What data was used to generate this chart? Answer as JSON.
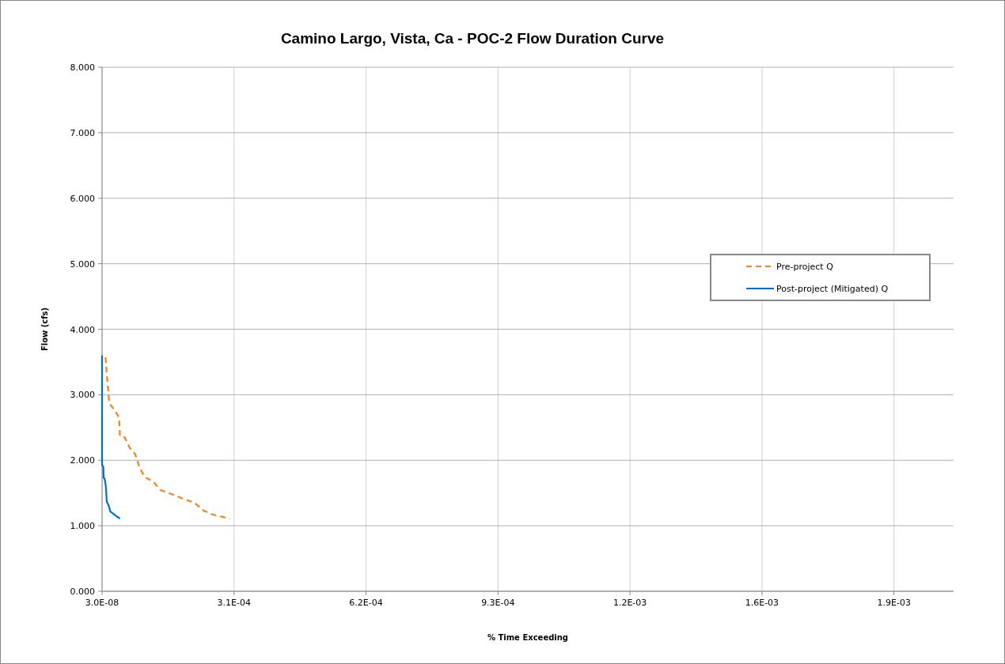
{
  "chart_data": {
    "type": "line",
    "title": "Camino Largo, Vista, Ca  - POC-2 Flow Duration Curve",
    "xlabel": "% Time Exceeding",
    "ylabel": "Flow (cfs)",
    "xlim": [
      3e-08,
      0.002
    ],
    "xticks": [
      {
        "value": 3e-08,
        "label": "3.0E-08"
      },
      {
        "value": 0.00031003,
        "label": "3.1E-04"
      },
      {
        "value": 0.00062003,
        "label": "6.2E-04"
      },
      {
        "value": 0.00093003,
        "label": "9.3E-04"
      },
      {
        "value": 0.00124003,
        "label": "1.2E-03"
      },
      {
        "value": 0.00155003,
        "label": "1.6E-03"
      },
      {
        "value": 0.00186003,
        "label": "1.9E-03"
      }
    ],
    "ylim": [
      0,
      8
    ],
    "yticks": [
      {
        "value": 0,
        "label": "0.000"
      },
      {
        "value": 1,
        "label": "1.000"
      },
      {
        "value": 2,
        "label": "2.000"
      },
      {
        "value": 3,
        "label": "3.000"
      },
      {
        "value": 4,
        "label": "4.000"
      },
      {
        "value": 5,
        "label": "5.000"
      },
      {
        "value": 6,
        "label": "6.000"
      },
      {
        "value": 7,
        "label": "7.000"
      },
      {
        "value": 8,
        "label": "8.000"
      }
    ],
    "grid": true,
    "legend": "right",
    "marker": "none",
    "series": [
      {
        "name": "Pre-project Q",
        "color": "#f58220",
        "line_style": "dashed",
        "x": [
          8.1e-06,
          1.1e-05,
          1.4e-05,
          1.7e-05,
          3.1e-05,
          4e-05,
          4.2e-05,
          5.3e-05,
          6.5e-05,
          7.8e-05,
          8.7e-05,
          9.9e-05,
          0.000121,
          0.000136,
          0.000161,
          0.000192,
          0.000217,
          0.000239,
          0.00026,
          0.0003
        ],
        "values": [
          3.57,
          3.31,
          3.09,
          2.87,
          2.75,
          2.65,
          2.37,
          2.35,
          2.19,
          2.09,
          1.91,
          1.75,
          1.67,
          1.55,
          1.49,
          1.41,
          1.35,
          1.23,
          1.17,
          1.11
        ]
      },
      {
        "name": "Post-project (Mitigated) Q",
        "color": "#0070c0",
        "line_style": "solid",
        "x": [
          3e-08,
          3e-08,
          3e-06,
          3.7e-06,
          6e-06,
          8.7e-06,
          1e-05,
          1.1e-05,
          1.6e-05,
          1.9e-05,
          3.1e-05,
          4.2e-05
        ],
        "values": [
          3.6,
          1.93,
          1.9,
          1.73,
          1.72,
          1.61,
          1.49,
          1.37,
          1.3,
          1.22,
          1.16,
          1.11
        ]
      }
    ]
  }
}
